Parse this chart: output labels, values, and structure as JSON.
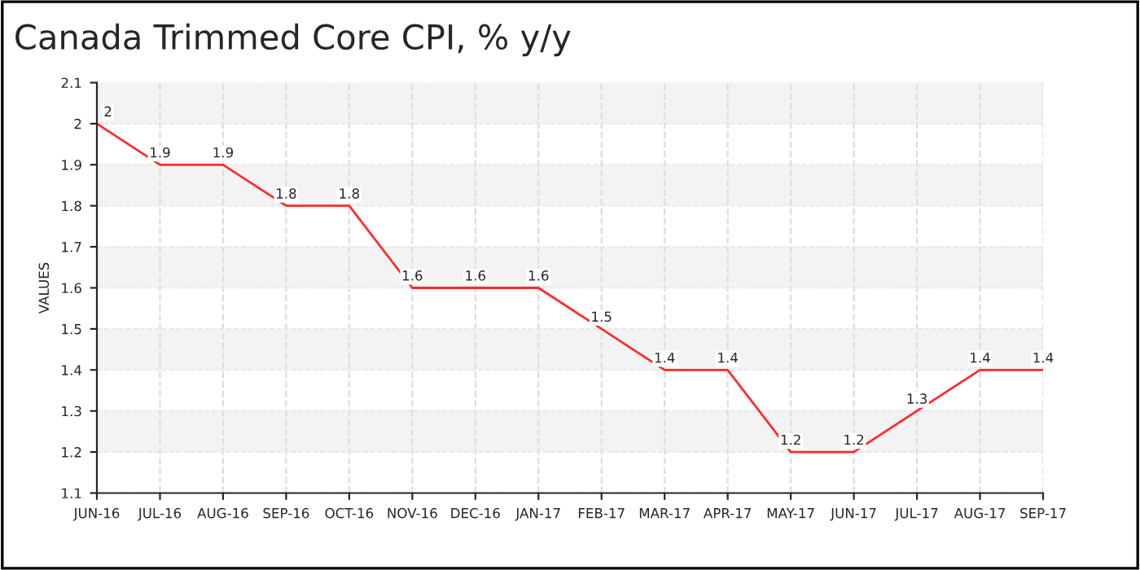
{
  "chart_data": {
    "type": "line",
    "title": "Canada Trimmed Core CPI, % y/y",
    "ylabel": "VALUES",
    "categories": [
      "JUN-16",
      "JUL-16",
      "AUG-16",
      "SEP-16",
      "OCT-16",
      "NOV-16",
      "DEC-16",
      "JAN-17",
      "FEB-17",
      "MAR-17",
      "APR-17",
      "MAY-17",
      "JUN-17",
      "JUL-17",
      "AUG-17",
      "SEP-17"
    ],
    "series": [
      {
        "color": "#ff2a2a",
        "values": [
          2,
          1.9,
          1.9,
          1.8,
          1.8,
          1.6,
          1.6,
          1.6,
          1.5,
          1.4,
          1.4,
          1.2,
          1.2,
          1.3,
          1.4,
          1.4
        ]
      }
    ],
    "ylim": [
      1.1,
      2.1
    ],
    "yticks": [
      1.1,
      1.2,
      1.3,
      1.4,
      1.5,
      1.6,
      1.7,
      1.8,
      1.9,
      2,
      2.1
    ],
    "grid": true,
    "data_labels": true,
    "marker": "none",
    "line_style": "solid"
  }
}
